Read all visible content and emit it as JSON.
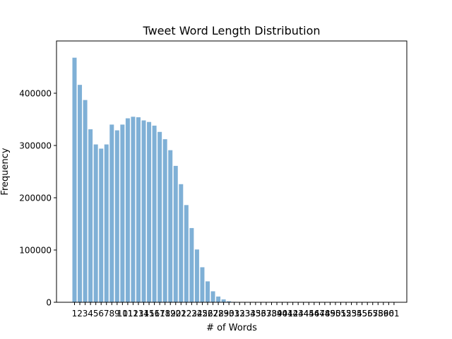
{
  "chart_data": {
    "type": "bar",
    "title": "Tweet Word Length Distribution",
    "xlabel": "# of Words",
    "ylabel": "Frequency",
    "categories": [
      "1",
      "2",
      "3",
      "4",
      "5",
      "6",
      "7",
      "8",
      "9",
      "10",
      "11",
      "12",
      "13",
      "14",
      "15",
      "16",
      "17",
      "18",
      "19",
      "20",
      "21",
      "22",
      "23",
      "24",
      "25",
      "26",
      "27",
      "28",
      "29",
      "30",
      "31",
      "32",
      "33",
      "34",
      "35",
      "36",
      "37",
      "38",
      "39",
      "40",
      "41",
      "42",
      "43",
      "44",
      "45",
      "46",
      "47",
      "48",
      "49",
      "50",
      "51",
      "52",
      "53",
      "54",
      "55",
      "56",
      "57",
      "58",
      "59",
      "60",
      "61"
    ],
    "values": [
      468000,
      416000,
      387000,
      331000,
      302000,
      294000,
      302000,
      340000,
      329000,
      340000,
      352000,
      355000,
      354000,
      348000,
      345000,
      338000,
      326000,
      312000,
      291000,
      261000,
      226000,
      186000,
      142000,
      101000,
      67000,
      40000,
      21000,
      11000,
      5500,
      2000,
      800,
      300,
      150,
      60,
      30,
      15,
      8,
      5,
      3,
      2,
      1,
      1,
      1,
      0,
      0,
      0,
      0,
      0,
      0,
      0,
      0,
      0,
      0,
      0,
      0,
      0,
      0,
      0,
      0,
      0,
      0
    ],
    "ylim": [
      0,
      500000
    ],
    "yticks": [
      "0",
      "100000",
      "200000",
      "300000",
      "400000"
    ],
    "bar_color": "#7fb0d6",
    "grid": false,
    "legend": "none"
  }
}
